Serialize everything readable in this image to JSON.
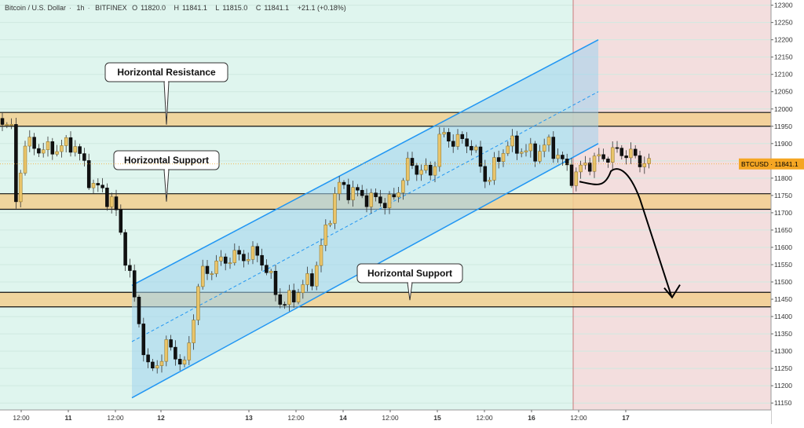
{
  "header": {
    "symbol_name": "Bitcoin / U.S. Dollar",
    "interval": "1h",
    "exchange": "BITFINEX",
    "o_label": "O",
    "o_value": "11820.0",
    "h_label": "H",
    "h_value": "11841.1",
    "l_label": "L",
    "l_value": "11815.0",
    "c_label": "C",
    "c_value": "11841.1",
    "change": "+21.1 (+0.18%)"
  },
  "price_tag": {
    "symbol": "BTCUSD",
    "value": "11841.1",
    "text": "BTCUSD · 11841.1"
  },
  "annotations": {
    "resistance": "Horizontal Resistance",
    "support_top": "Horizontal Support",
    "support_bottom": "Horizontal Support"
  },
  "colors": {
    "background": "#dff5ee",
    "forecast_zone": "#f3dede",
    "zone_fill": "#f2cf8f",
    "channel_fill": "#9fd1ee",
    "channel_line": "#2196f3",
    "bull_candle": "#e9c46a",
    "bear_candle": "#111111",
    "price_tag": "#f5a623",
    "arrow": "#000000"
  },
  "chart_data": {
    "type": "candlestick",
    "symbol": "BTCUSD",
    "timeframe": "1h",
    "y_axis": {
      "range": [
        11140,
        12310
      ],
      "ticks": [
        11150,
        11200,
        11250,
        11300,
        11350,
        11400,
        11450,
        11500,
        11550,
        11600,
        11650,
        11700,
        11750,
        11800,
        11850,
        11900,
        11950,
        12000,
        12050,
        12100,
        12150,
        12200,
        12250,
        12300
      ]
    },
    "x_axis": {
      "tick_labels": [
        "12:00",
        "11",
        "12:00",
        "12",
        "13",
        "12:00",
        "14",
        "12:00",
        "15",
        "12:00",
        "16",
        "12:00",
        "17"
      ]
    },
    "zones": [
      {
        "label": "Horizontal Resistance",
        "low": 11950,
        "high": 11990
      },
      {
        "label": "Horizontal Support",
        "low": 11710,
        "high": 11755
      },
      {
        "label": "Horizontal Support",
        "low": 11428,
        "high": 11470
      }
    ],
    "channel": {
      "lower_start": 11165,
      "lower_end": 11900,
      "upper_start": 11490,
      "upper_end": 12200
    },
    "last_price": 11841.1,
    "forecast": {
      "from": 11790,
      "peak": 11830,
      "target": 11460
    }
  }
}
